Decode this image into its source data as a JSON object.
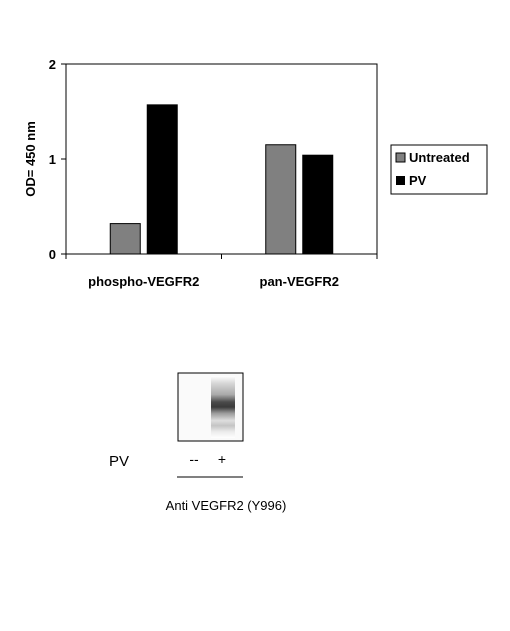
{
  "chart_data": {
    "type": "bar",
    "categories": [
      "phospho-VEGFR2",
      "pan-VEGFR2"
    ],
    "series": [
      {
        "name": "Untreated",
        "values": [
          0.32,
          1.15
        ],
        "color": "#808080"
      },
      {
        "name": "PV",
        "values": [
          1.57,
          1.04
        ],
        "color": "#000000"
      }
    ],
    "ylabel": "OD= 450 nm",
    "xlabel": "",
    "ylim": [
      0,
      2
    ],
    "yticks": [
      0,
      1,
      2
    ],
    "legend": "right",
    "grid": false
  },
  "blot": {
    "row_label": "PV",
    "lanes": [
      "--",
      "+"
    ],
    "caption": "Anti VEGFR2 (Y996)"
  }
}
